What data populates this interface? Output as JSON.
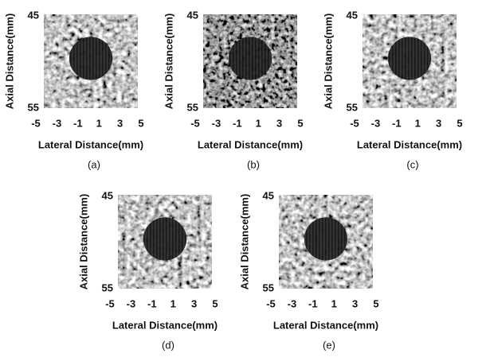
{
  "panels": [
    {
      "label": "(a)",
      "x_label": "Lateral Distance(mm)",
      "y_label": "Axial Distance(mm)",
      "xticks": [
        -5,
        -3,
        -1,
        1,
        3,
        5
      ],
      "yticks": [
        45,
        55
      ]
    },
    {
      "label": "(b)",
      "x_label": "Lateral Distance(mm)",
      "y_label": "Axial Distance(mm)",
      "xticks": [
        -5,
        -3,
        -1,
        1,
        3,
        5
      ],
      "yticks": [
        45,
        55
      ]
    },
    {
      "label": "(c)",
      "x_label": "Lateral Distance(mm)",
      "y_label": "Axial Distance(mm)",
      "xticks": [
        -5,
        -3,
        -1,
        1,
        3,
        5
      ],
      "yticks": [
        45,
        55
      ]
    },
    {
      "label": "(d)",
      "x_label": "Lateral Distance(mm)",
      "y_label": "Axial Distance(mm)",
      "xticks": [
        -5,
        -3,
        -1,
        1,
        3,
        5
      ],
      "yticks": [
        45,
        55
      ]
    },
    {
      "label": "(e)",
      "x_label": "Lateral Distance(mm)",
      "y_label": "Axial Distance(mm)",
      "xticks": [
        -5,
        -3,
        -1,
        1,
        3,
        5
      ],
      "yticks": [
        45,
        55
      ]
    }
  ]
}
